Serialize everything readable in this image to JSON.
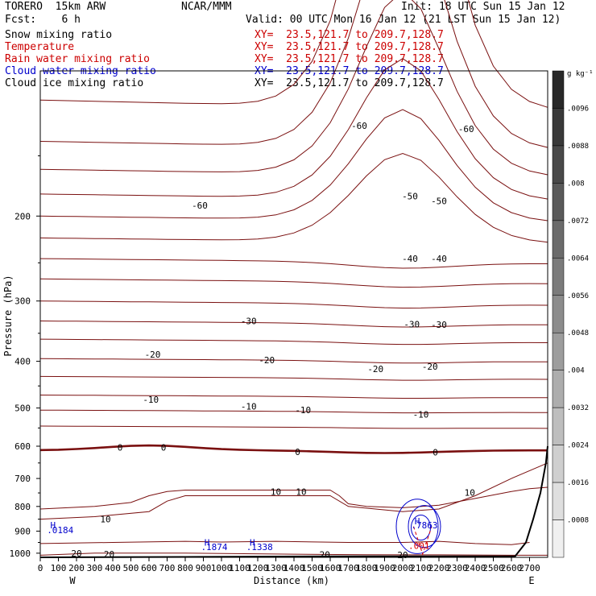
{
  "header": {
    "model": "TORERO  15km ARW",
    "center": "NCAR/MMM",
    "init": "Init: 18 UTC Sun 15 Jan 12",
    "fcst": "Fcst:    6 h",
    "valid": "Valid: 00 UTC Mon 16 Jan 12 (21 LST Sun 15 Jan 12)"
  },
  "fields": [
    {
      "label": "Snow mixing ratio",
      "xy": "XY=  23.5,121.7 to 209.7,128.7",
      "color": "#000000"
    },
    {
      "label": "Temperature",
      "xy": "XY=  23.5,121.7 to 209.7,128.7",
      "color": "#cc0000"
    },
    {
      "label": "Rain water mixing ratio",
      "xy": "XY=  23.5,121.7 to 209.7,128.7",
      "color": "#cc0000"
    },
    {
      "label": "Cloud water mixing ratio",
      "xy": "XY=  23.5,121.7 to 209.7,128.7",
      "color": "#0000cc"
    },
    {
      "label": "Cloud ice mixing ratio",
      "xy": "XY=  23.5,121.7 to 209.7,128.7",
      "color": "#000000"
    }
  ],
  "colorbar": {
    "unit": "g kg⁻¹",
    "ticks": [
      ".0096",
      ".0088",
      ".008",
      ".0072",
      ".0064",
      ".0056",
      ".0048",
      ".004",
      ".0032",
      ".0024",
      ".0016",
      ".0008"
    ]
  },
  "chart_data": {
    "type": "contour",
    "xlabel": "Distance (km)",
    "ylabel": "Pressure (hPa)",
    "xlim": [
      0,
      2800
    ],
    "ylim": [
      1020,
      100
    ],
    "yscale": "log",
    "x_ticks": [
      "0",
      "100",
      "200",
      "300",
      "400",
      "500",
      "600",
      "700",
      "800",
      "900",
      "1000",
      "1100",
      "1200",
      "1300",
      "1400",
      "1500",
      "1600",
      "1700",
      "1800",
      "1900",
      "2000",
      "2100",
      "2200",
      "2300",
      "2400",
      "2500",
      "2600",
      "2700"
    ],
    "y_ticks": [
      {
        "value": 200,
        "label": "200"
      },
      {
        "value": 300,
        "label": "300"
      },
      {
        "value": 400,
        "label": "400"
      },
      {
        "value": 500,
        "label": "500"
      },
      {
        "value": 600,
        "label": "600"
      },
      {
        "value": 700,
        "label": "700"
      },
      {
        "value": 800,
        "label": "800"
      },
      {
        "value": 900,
        "label": "900"
      },
      {
        "value": 1000,
        "label": "1000"
      }
    ],
    "end_labels": {
      "left": "W",
      "right": "E"
    },
    "temperature_labels": [
      {
        "text": "-60",
        "x": 880,
        "y": 190
      },
      {
        "text": "-60",
        "x": 1760,
        "y": 130
      },
      {
        "text": "-60",
        "x": 2350,
        "y": 132
      },
      {
        "text": "-50",
        "x": 2040,
        "y": 182
      },
      {
        "text": "-50",
        "x": 2200,
        "y": 186
      },
      {
        "text": "-40",
        "x": 2040,
        "y": 245
      },
      {
        "text": "-40",
        "x": 2200,
        "y": 245
      },
      {
        "text": "-30",
        "x": 1150,
        "y": 330
      },
      {
        "text": "-30",
        "x": 2050,
        "y": 335
      },
      {
        "text": "-30",
        "x": 2200,
        "y": 336
      },
      {
        "text": "-20",
        "x": 620,
        "y": 387
      },
      {
        "text": "-20",
        "x": 1250,
        "y": 398
      },
      {
        "text": "-20",
        "x": 1850,
        "y": 415
      },
      {
        "text": "-20",
        "x": 2150,
        "y": 410
      },
      {
        "text": "-10",
        "x": 610,
        "y": 480
      },
      {
        "text": "-10",
        "x": 1150,
        "y": 496
      },
      {
        "text": "-10",
        "x": 1450,
        "y": 505
      },
      {
        "text": "-10",
        "x": 2100,
        "y": 515
      },
      {
        "text": "0",
        "x": 440,
        "y": 603
      },
      {
        "text": "0",
        "x": 680,
        "y": 603
      },
      {
        "text": "0",
        "x": 1420,
        "y": 616
      },
      {
        "text": "0",
        "x": 2180,
        "y": 617
      },
      {
        "text": "10",
        "x": 1300,
        "y": 745
      },
      {
        "text": "10",
        "x": 1440,
        "y": 745
      },
      {
        "text": "10",
        "x": 2370,
        "y": 748
      },
      {
        "text": "10",
        "x": 360,
        "y": 850
      },
      {
        "text": "20",
        "x": 200,
        "y": 1000
      },
      {
        "text": "20",
        "x": 380,
        "y": 1005
      },
      {
        "text": "20",
        "x": 1570,
        "y": 1007
      },
      {
        "text": "20",
        "x": 2000,
        "y": 1008
      }
    ],
    "cloud_water_labels": [
      {
        "text": "H",
        "x": 70,
        "y": 875
      },
      {
        "text": ".0184",
        "x": 110,
        "y": 895
      },
      {
        "text": "H",
        "x": 920,
        "y": 950
      },
      {
        "text": ".1874",
        "x": 960,
        "y": 970
      },
      {
        "text": "H",
        "x": 1170,
        "y": 950
      },
      {
        "text": ".1338",
        "x": 1210,
        "y": 970
      },
      {
        "text": "H",
        "x": 2080,
        "y": 858
      },
      {
        "text": ".7863",
        "x": 2120,
        "y": 875
      }
    ],
    "rain_labels": [
      {
        "text": ".001",
        "x": 2090,
        "y": 965
      }
    ]
  }
}
